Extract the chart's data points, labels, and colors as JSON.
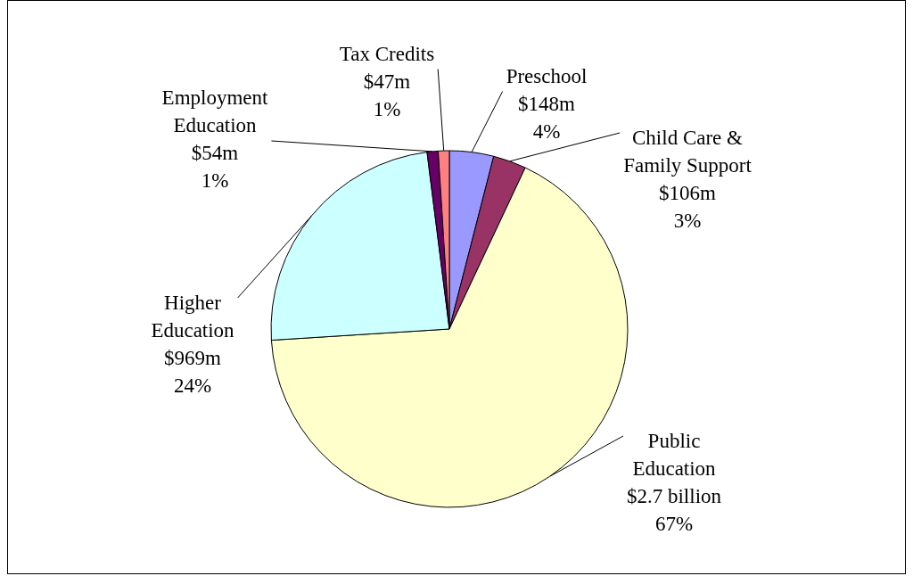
{
  "chart_data": {
    "type": "pie",
    "categories": [
      "Preschool",
      "Child Care &\nFamily Support",
      "Public\nEducation",
      "Higher\nEducation",
      "Employment\nEducation",
      "Tax Credits"
    ],
    "values": [
      4,
      3,
      67,
      24,
      1,
      1
    ],
    "value_labels": [
      "$148m\n4%",
      "$106m\n3%",
      "$2.7 billion\n67%",
      "$969m\n24%",
      "$54m\n1%",
      "$47m\n1%"
    ],
    "colors": [
      "#9999ff",
      "#993366",
      "#ffffcc",
      "#ccffff",
      "#660066",
      "#ff8080"
    ],
    "legend": false
  }
}
